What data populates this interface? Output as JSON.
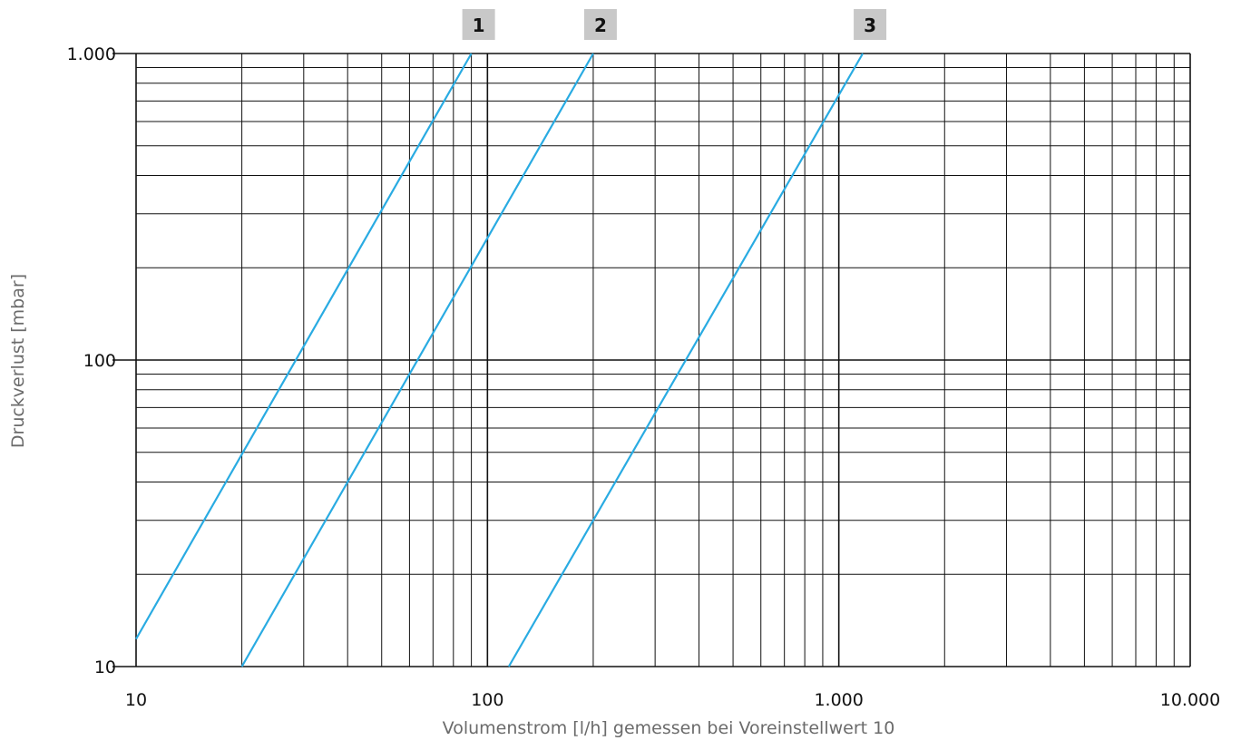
{
  "chart_data": {
    "type": "line",
    "title": "",
    "xlabel": "Volumenstrom [l/h] gemessen bei Voreinstellwert 10",
    "ylabel": "Druckverlust [mbar]",
    "x_scale": "log",
    "y_scale": "log",
    "xlim": [
      10,
      10000
    ],
    "ylim": [
      10,
      1000
    ],
    "grid": true,
    "x_ticks": [
      {
        "value": 10,
        "label": "10"
      },
      {
        "value": 100,
        "label": "100"
      },
      {
        "value": 1000,
        "label": "1.000"
      },
      {
        "value": 10000,
        "label": "10.000"
      }
    ],
    "y_ticks": [
      {
        "value": 10,
        "label": "10"
      },
      {
        "value": 100,
        "label": "100"
      },
      {
        "value": 1000,
        "label": "1.000"
      }
    ],
    "series": [
      {
        "name": "1",
        "x": [
          10,
          90
        ],
        "y": [
          12.3,
          1000
        ]
      },
      {
        "name": "2",
        "x": [
          20,
          200
        ],
        "y": [
          10,
          1000
        ]
      },
      {
        "name": "3",
        "x": [
          115,
          1170
        ],
        "y": [
          10,
          1000
        ]
      }
    ],
    "colors": {
      "line": "#29abe2",
      "grid": "#111111",
      "badge": "#c8c8c8"
    }
  }
}
